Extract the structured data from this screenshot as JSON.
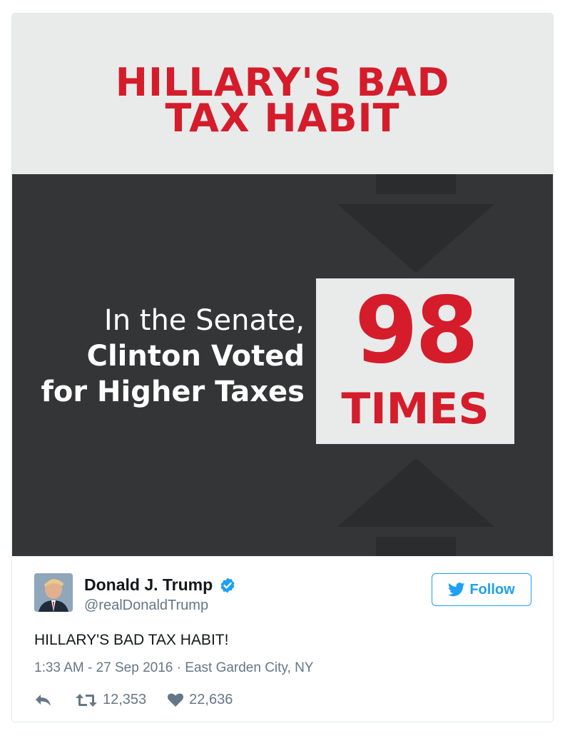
{
  "media": {
    "headline_line1": "HILLARY'S BAD",
    "headline_line2": "TAX HABIT",
    "left_line1": "In the Senate,",
    "left_line2": "Clinton Voted",
    "left_line3": "for Higher Taxes",
    "big_number": "98",
    "times_label": "TIMES"
  },
  "tweet": {
    "author_name": "Donald J. Trump",
    "handle": "@realDonaldTrump",
    "follow_label": "Follow",
    "text": "HILLARY'S BAD TAX HABIT!",
    "timestamp": "1:33 AM - 27 Sep 2016",
    "separator": "·",
    "location": "East Garden City, NY",
    "retweets": "12,353",
    "likes": "22,636"
  },
  "colors": {
    "accent_red": "#d51c2b",
    "twitter_blue": "#1da1f2",
    "dark_panel": "#343536",
    "light_panel": "#e9ebeb"
  },
  "icons": [
    "verified-badge-icon",
    "twitter-bird-icon",
    "reply-icon",
    "retweet-icon",
    "heart-icon"
  ]
}
